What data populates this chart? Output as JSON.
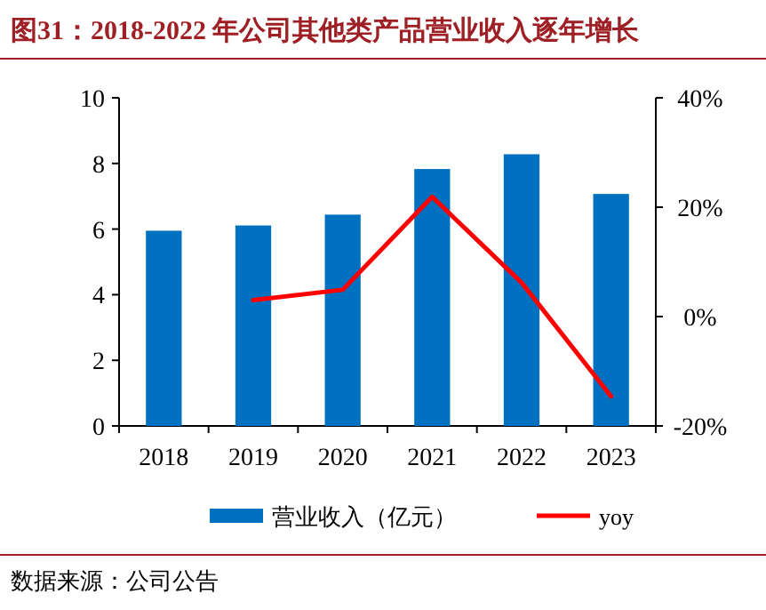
{
  "chart_data": {
    "type": "bar",
    "title": "图31：2018-2022 年公司其他类产品营业收入逐年增长",
    "categories": [
      "2018",
      "2019",
      "2020",
      "2021",
      "2022",
      "2023"
    ],
    "series": [
      {
        "name": "营业收入（亿元）",
        "color": "#0070c0",
        "values": [
          5.95,
          6.11,
          6.44,
          7.83,
          8.28,
          7.07
        ]
      },
      {
        "name": "yoy",
        "type": "line",
        "axis": "y2",
        "color": "#ff0000",
        "values": [
          null,
          3.0,
          4.9,
          21.9,
          6.2,
          -14.6
        ]
      }
    ],
    "ylim": [
      0,
      10
    ],
    "yticks": [
      0,
      2,
      4,
      6,
      8,
      10
    ],
    "y2lim": [
      -20,
      40
    ],
    "y2ticks": [
      {
        "value": -20,
        "label": "-20%"
      },
      {
        "value": 0,
        "label": "0%"
      },
      {
        "value": 20,
        "label": "20%"
      },
      {
        "value": 40,
        "label": "40%"
      }
    ],
    "legend": "bottom",
    "grid": false,
    "annotations": [
      "数据来源：公司公告"
    ]
  }
}
